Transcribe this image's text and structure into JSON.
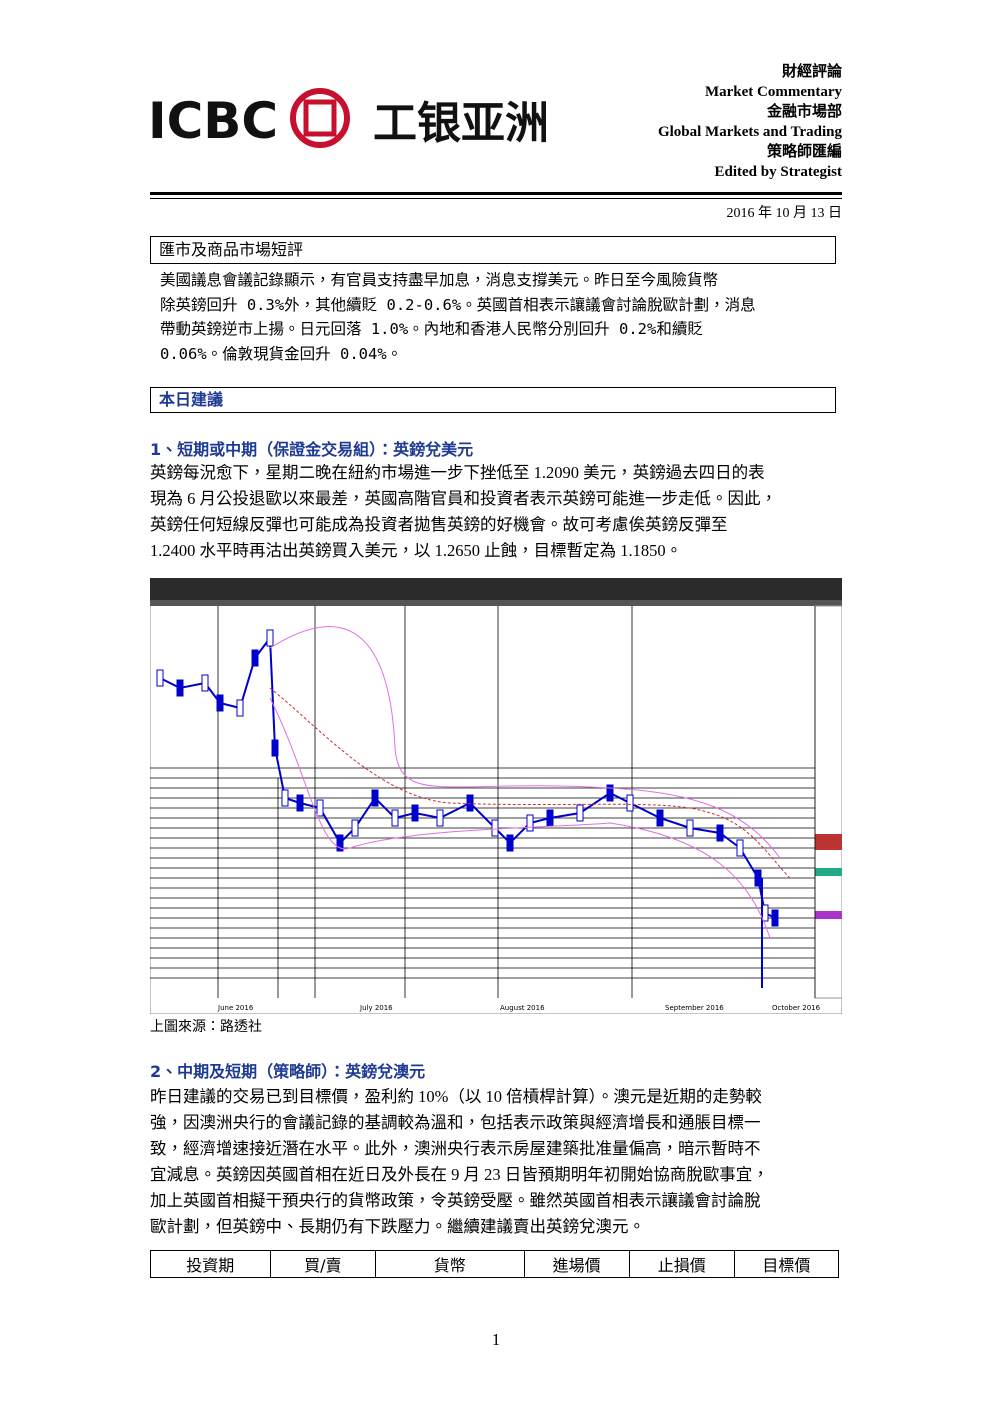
{
  "header": {
    "logo_text": "ICBC",
    "logo_cn": "工银亚洲",
    "right_lines": [
      "財經評論",
      "Market Commentary",
      "金融市場部",
      "Global Markets and Trading",
      "策略師匯編",
      "Edited by Strategist"
    ],
    "date": "2016 年 10 月 13 日"
  },
  "section1": {
    "title": "匯市及商品市場短評",
    "lines": [
      "美國議息會議記錄顯示，有官員支持盡早加息，消息支撐美元。昨日至今風險貨幣",
      "除英鎊回升 0.3%外，其他續貶 0.2-0.6%。英國首相表示讓議會討論脫歐計劃，消息",
      "帶動英鎊逆市上揚。日元回落 1.0%。內地和香港人民幣分別回升 0.2%和續貶",
      "0.06%。倫敦現貨金回升 0.04%。"
    ]
  },
  "section2": {
    "title": "本日建議",
    "item1": {
      "heading": "1、短期或中期（保證金交易組）：英鎊兌美元",
      "lines": [
        "英鎊每況愈下，星期二晚在紐約市場進一步下挫低至 1.2090 美元，英鎊過去四日的表",
        "現為 6 月公投退歐以來最差，英國高階官員和投資者表示英鎊可能進一步走低。因此，",
        "英鎊任何短線反彈也可能成為投資者拋售英鎊的好機會。故可考慮俟英鎊反彈至",
        "1.2400 水平時再沽出英鎊買入美元，以 1.2650 止蝕，目標暫定為 1.1850。"
      ],
      "chart_months": [
        "June 2016",
        "July 2016",
        "August 2016",
        "September 2016",
        "October 2016"
      ],
      "caption": "上圖來源：路透社"
    },
    "item2": {
      "heading": "2、中期及短期（策略師）：英鎊兌澳元",
      "lines": [
        "昨日建議的交易已到目標價，盈利約 10%（以 10 倍槓桿計算）。澳元是近期的走勢較",
        "強，因澳洲央行的會議記錄的基調較為溫和，包括表示政策與經濟增長和通脹目標一",
        "致，經濟增速接近潛在水平。此外，澳洲央行表示房屋建築批准量偏高，暗示暫時不",
        "宜減息。英鎊因英國首相在近日及外長在 9 月 23 日皆預期明年初開始協商脫歐事宜，",
        "加上英國首相擬干預央行的貨幣政策，令英鎊受壓。雖然英國首相表示讓議會討論脫",
        "歐計劃，但英鎊中、長期仍有下跌壓力。繼續建議賣出英鎊兌澳元。"
      ]
    },
    "table": {
      "header": [
        "投資期",
        "買/賣",
        "貨幣",
        "進場價",
        "止損價",
        "目標價"
      ]
    }
  },
  "footer": {
    "page_number": "1"
  }
}
